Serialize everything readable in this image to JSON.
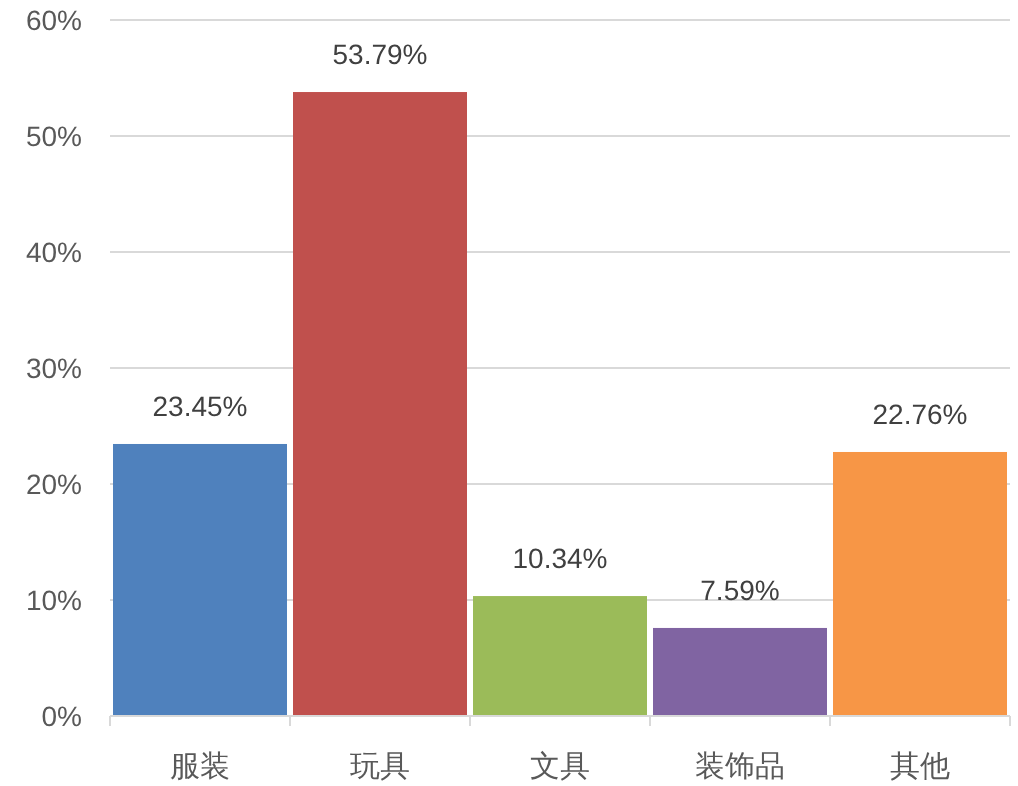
{
  "chart_data": {
    "type": "bar",
    "categories": [
      "服装",
      "玩具",
      "文具",
      "装饰品",
      "其他"
    ],
    "values": [
      23.45,
      53.79,
      10.34,
      7.59,
      22.76
    ],
    "colors": [
      "#4f81bd",
      "#c0504d",
      "#9bbb59",
      "#8064a2",
      "#f79646"
    ],
    "value_labels": [
      "23.45%",
      "53.79%",
      "10.34%",
      "7.59%",
      "22.76%"
    ],
    "ylim": [
      0,
      60
    ],
    "yticks": [
      {
        "value": 0,
        "label": "0%"
      },
      {
        "value": 10,
        "label": "10%"
      },
      {
        "value": 20,
        "label": "20%"
      },
      {
        "value": 30,
        "label": "30%"
      },
      {
        "value": 40,
        "label": "40%"
      },
      {
        "value": 50,
        "label": "50%"
      },
      {
        "value": 60,
        "label": "60%"
      }
    ],
    "grid": "y"
  }
}
